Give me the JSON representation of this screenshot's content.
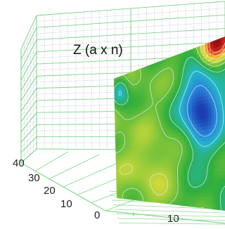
{
  "chart_data": {
    "type": "heatmap",
    "title": "",
    "annotation": "Z (a x n)",
    "xlabel": "",
    "ylabel": "",
    "y_ticks": [
      "40",
      "30",
      "20",
      "10",
      "0"
    ],
    "x_ticks": [
      "10"
    ],
    "ylim": [
      0,
      40
    ],
    "grid": true,
    "colormap": [
      "#1a3fb0",
      "#2a7fd8",
      "#23b8c9",
      "#2fae3c",
      "#8fc93a",
      "#f2e23a",
      "#f08a2a",
      "#d42a1e",
      "#9a0f10"
    ],
    "colors": {
      "grid": "#6fd07a",
      "grid_dotted": "#9aa4b4",
      "contour": "#e8f4ff"
    }
  }
}
